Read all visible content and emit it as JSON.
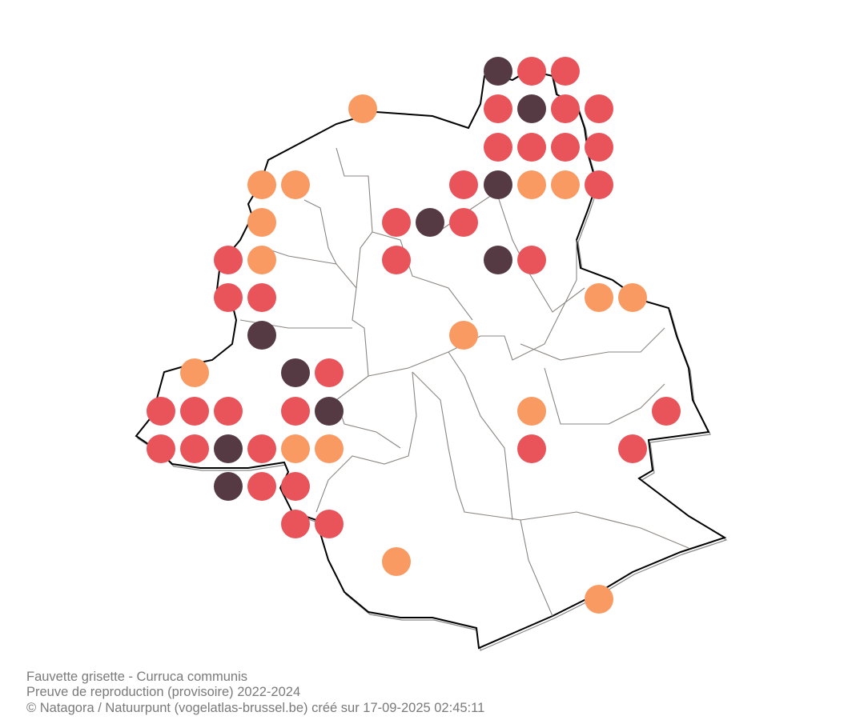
{
  "caption": {
    "species": "Fauvette grisette - Curruca communis",
    "subtitle": "Preuve de reproduction (provisoire) 2022-2024",
    "credit": "© Natagora / Natuurpunt (vogelatlas-brussel.be) créé sur 17-09-2025 02:45:11"
  }
}
